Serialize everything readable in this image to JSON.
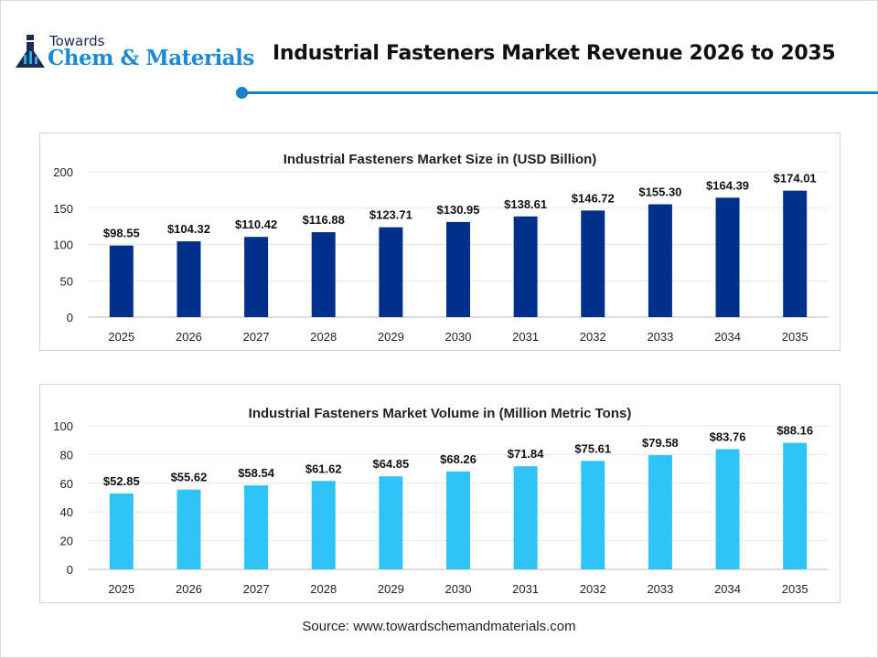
{
  "brand": {
    "line1": "Towards",
    "line2": "Chem & Materials"
  },
  "title": "Industrial Fasteners Market Revenue 2026 to 2035",
  "source": "Source: www.towardschemandmaterials.com",
  "colors": {
    "accent": "#1a7fc9",
    "size_bar": "#00308a",
    "volume_bar": "#2ec4f7"
  },
  "chart_data": [
    {
      "type": "bar",
      "title": "Industrial Fasteners Market Size in (USD Billion)",
      "categories": [
        "2025",
        "2026",
        "2027",
        "2028",
        "2029",
        "2030",
        "2031",
        "2032",
        "2033",
        "2034",
        "2035"
      ],
      "values": [
        98.55,
        104.32,
        110.42,
        116.88,
        123.71,
        130.95,
        138.61,
        146.72,
        155.3,
        164.39,
        174.01
      ],
      "labels": [
        "$98.55",
        "$104.32",
        "$110.42",
        "$116.88",
        "$123.71",
        "$130.95",
        "$138.61",
        "$146.72",
        "$155.30",
        "$164.39",
        "$174.01"
      ],
      "ylim": [
        0,
        200
      ],
      "yticks": [
        "0",
        "50",
        "100",
        "150",
        "200"
      ],
      "grid": true,
      "color": "#00308a"
    },
    {
      "type": "bar",
      "title": "Industrial Fasteners Market Volume in (Million Metric Tons)",
      "categories": [
        "2025",
        "2026",
        "2027",
        "2028",
        "2029",
        "2030",
        "2031",
        "2032",
        "2033",
        "2034",
        "2035"
      ],
      "values": [
        52.85,
        55.62,
        58.54,
        61.62,
        64.85,
        68.26,
        71.84,
        75.61,
        79.58,
        83.76,
        88.16
      ],
      "labels": [
        "$52.85",
        "$55.62",
        "$58.54",
        "$61.62",
        "$64.85",
        "$68.26",
        "$71.84",
        "$75.61",
        "$79.58",
        "$83.76",
        "$88.16"
      ],
      "ylim": [
        0,
        100
      ],
      "yticks": [
        "0",
        "20",
        "40",
        "60",
        "80",
        "100"
      ],
      "grid": true,
      "color": "#2ec4f7"
    }
  ]
}
